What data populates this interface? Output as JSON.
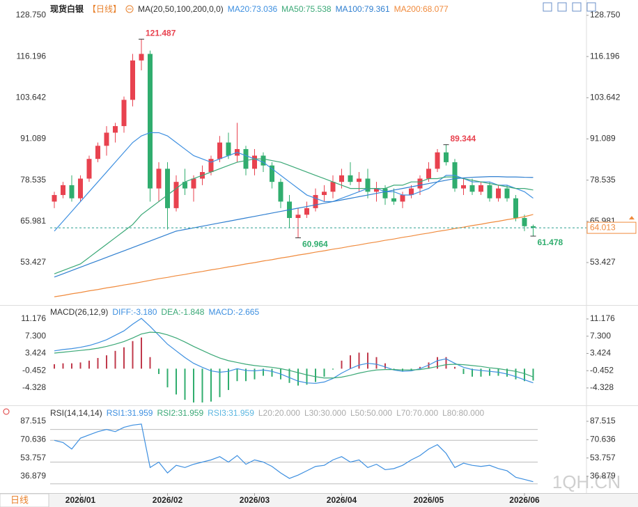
{
  "header": {
    "symbol": "现货白银",
    "period": "【日线】",
    "watermark": "1QH.CN",
    "period_button": "日线"
  },
  "chart_data": [
    {
      "type": "candlestick",
      "title": "MA(20,50,100,200,0,0)",
      "categories": [
        null,
        null,
        null,
        "2026/01",
        null,
        null,
        null,
        null,
        null,
        null,
        null,
        null,
        null,
        "2026/02",
        null,
        null,
        null,
        null,
        null,
        null,
        null,
        null,
        null,
        "2026/03",
        null,
        null,
        null,
        null,
        null,
        null,
        null,
        null,
        null,
        "2026/04",
        null,
        null,
        null,
        null,
        null,
        null,
        null,
        null,
        null,
        "2026/05",
        null,
        null,
        null,
        null,
        null,
        null,
        null,
        null,
        null,
        null,
        "2026/06",
        null
      ],
      "ohlc": {
        "open": [
          72,
          74,
          77,
          73,
          79,
          85,
          89,
          93,
          95,
          103,
          115,
          117,
          76,
          82,
          70,
          78,
          76,
          79,
          81,
          85,
          90,
          86,
          88,
          82,
          86,
          83,
          78,
          72,
          67,
          68,
          70,
          74,
          75,
          78,
          80,
          78,
          79,
          75,
          76,
          73,
          72,
          74,
          76,
          79,
          82,
          87,
          84,
          76,
          77,
          75,
          77,
          73,
          76,
          73,
          67,
          64.5
        ],
        "high": [
          75,
          78,
          80,
          80,
          86,
          90,
          95,
          96,
          104,
          117,
          121.487,
          118,
          84,
          84,
          80,
          82,
          80,
          83,
          86,
          92,
          93,
          96,
          89,
          88,
          87,
          84,
          79,
          74,
          70,
          72,
          76,
          77,
          80,
          82,
          84,
          81,
          82,
          78,
          77,
          76,
          75,
          77,
          80,
          84,
          88,
          89.344,
          85,
          79,
          79,
          78,
          78,
          77,
          77,
          74,
          68,
          65
        ],
        "low": [
          70,
          73,
          72,
          72,
          78,
          84,
          86,
          90,
          93,
          101,
          112,
          72,
          72,
          63.5,
          69,
          74,
          72,
          77,
          80,
          84,
          85,
          84,
          80,
          80,
          81,
          76,
          70,
          64,
          60.964,
          67,
          69,
          72,
          73,
          76,
          77,
          75,
          73,
          72,
          71,
          71,
          70,
          73,
          74,
          78,
          81,
          83,
          75,
          74,
          74,
          74,
          72,
          72,
          72,
          66,
          63,
          61.478
        ],
        "close": [
          74,
          77,
          73,
          79,
          85,
          89,
          93,
          95,
          103,
          115,
          117,
          76,
          82,
          70,
          78,
          76,
          79,
          81,
          85,
          90,
          86,
          88,
          82,
          86,
          83,
          78,
          72,
          67,
          68,
          70,
          74,
          75,
          78,
          80,
          78,
          79,
          75,
          76,
          73,
          72,
          74,
          76,
          79,
          82,
          87,
          84,
          76,
          77,
          75,
          77,
          73,
          76,
          73,
          67,
          64.5,
          64.013
        ]
      },
      "up_color": "#e8424f",
      "down_color": "#30ad6e",
      "price_line_color": "#2a9d8f",
      "price_tag_color": "#f08a3c",
      "lines": [
        {
          "name": "MA20:73.036",
          "color": "#3d8fe0",
          "values": [
            63,
            66,
            69,
            72,
            75,
            78,
            81,
            84,
            87,
            90,
            92,
            93,
            93,
            92,
            90,
            88,
            86,
            85,
            84,
            85,
            86,
            87,
            86,
            85,
            84,
            82,
            80,
            78,
            76,
            74,
            73,
            72,
            72,
            73,
            74,
            75,
            76,
            76,
            75,
            75,
            74,
            74,
            75,
            76,
            78,
            80,
            80,
            79,
            78,
            78,
            78,
            77,
            77,
            76,
            75,
            73.036
          ]
        },
        {
          "name": "MA50:75.538",
          "color": "#3aa876",
          "values": [
            50,
            51,
            52,
            53,
            55,
            57,
            59,
            61,
            63,
            65,
            68,
            70,
            72,
            74,
            76,
            78,
            79,
            80,
            81,
            82,
            83,
            84,
            84.5,
            85,
            85,
            84.5,
            84,
            83,
            82,
            81,
            80,
            79,
            78,
            77,
            76,
            76,
            76,
            76,
            76,
            77,
            77,
            78,
            78,
            79,
            79,
            79.5,
            79.5,
            79,
            78.5,
            78,
            77.5,
            77,
            76.5,
            76,
            76,
            75.538
          ]
        },
        {
          "name": "MA100:79.361",
          "color": "#2f7fd0",
          "values": [
            49,
            50,
            51,
            52,
            53,
            54,
            55,
            56,
            57,
            58,
            59,
            60,
            61,
            62,
            63,
            63.5,
            64,
            64.5,
            65,
            65.5,
            66,
            66.5,
            67,
            67.5,
            68,
            68.5,
            69,
            69.5,
            70,
            70.5,
            71,
            71.5,
            72,
            72.5,
            73,
            73.5,
            74,
            74.5,
            75,
            75.5,
            76,
            76.5,
            77,
            77.5,
            78,
            78.5,
            79,
            79.2,
            79.4,
            79.5,
            79.6,
            79.6,
            79.5,
            79.5,
            79.4,
            79.361
          ]
        },
        {
          "name": "MA200:68.077",
          "color": "#f08a3c",
          "values": [
            43.0,
            43.4,
            43.9,
            44.3,
            44.8,
            45.2,
            45.7,
            46.1,
            46.6,
            47.0,
            47.5,
            48.0,
            48.5,
            48.9,
            49.4,
            49.8,
            50.3,
            50.7,
            51.2,
            51.6,
            52.1,
            52.5,
            53.0,
            53.4,
            53.9,
            54.3,
            54.8,
            55.2,
            55.7,
            56.1,
            56.6,
            57.0,
            57.5,
            57.9,
            58.4,
            58.8,
            59.3,
            59.7,
            60.2,
            60.6,
            61.1,
            61.5,
            62.0,
            62.4,
            62.9,
            63.3,
            63.8,
            64.2,
            64.7,
            65.1,
            65.6,
            66.0,
            66.5,
            66.9,
            67.4,
            68.077
          ]
        }
      ],
      "annotations": [
        {
          "text": "121.487",
          "field": "high",
          "color": "#e8424f"
        },
        {
          "text": "60.964",
          "field": "low",
          "color": "#30ad6e"
        },
        {
          "text": "89.344",
          "field": "high",
          "color": "#e8424f"
        },
        {
          "text": "61.478",
          "field": "low",
          "color": "#30ad6e"
        }
      ],
      "ylim": [
        40.48,
        131.3
      ],
      "yticks": [
        {
          "value": 128.75,
          "label": "128.750"
        },
        116.196,
        103.642,
        91.089,
        78.535,
        65.981,
        53.427
      ]
    },
    {
      "type": "macd",
      "title": "MACD(26,12,9)",
      "series": [
        {
          "name": "DIFF:-3.180",
          "color": "#3d8fe0",
          "values": [
            4,
            4.3,
            4.5,
            4.8,
            5.2,
            5.8,
            6.5,
            7.5,
            8.5,
            10,
            11.3,
            9.5,
            7.5,
            5.5,
            4,
            2.5,
            1.2,
            0.3,
            -0.5,
            -0.8,
            -0.6,
            0,
            -0.4,
            -0.5,
            -0.3,
            -0.6,
            -1.2,
            -2,
            -2.8,
            -3.2,
            -3.3,
            -3,
            -2.2,
            -1,
            0,
            0.8,
            1.2,
            1,
            0.4,
            -0.3,
            -0.6,
            -0.5,
            0,
            0.8,
            1.8,
            2.2,
            1.2,
            0.3,
            -0.2,
            -0.4,
            -0.6,
            -0.8,
            -1.2,
            -1.8,
            -2.5,
            -3.18
          ]
        },
        {
          "name": "DEA:-1.848",
          "color": "#3aa876",
          "values": [
            3.5,
            3.7,
            3.9,
            4.1,
            4.3,
            4.6,
            5,
            5.5,
            6.1,
            6.9,
            7.8,
            8.2,
            8.1,
            7.6,
            6.9,
            6,
            5,
            4.1,
            3.2,
            2.4,
            1.8,
            1.4,
            1,
            0.7,
            0.5,
            0.3,
            0,
            -0.4,
            -0.9,
            -1.4,
            -1.8,
            -2.1,
            -2.1,
            -1.9,
            -1.5,
            -1,
            -0.6,
            -0.3,
            -0.2,
            -0.2,
            -0.3,
            -0.3,
            -0.2,
            0.1,
            0.5,
            0.9,
            1,
            0.9,
            0.7,
            0.5,
            0.2,
            0,
            -0.3,
            -0.6,
            -1.1,
            -1.848
          ]
        },
        {
          "name": "MACD:-2.665",
          "type": "bar",
          "color": "#3d8fe0",
          "up_color": "#c0394b",
          "down_color": "#30ad6e",
          "values": [
            1.0,
            1.2,
            1.2,
            1.4,
            1.8,
            2.4,
            3.0,
            4.0,
            4.8,
            6.2,
            7.0,
            2.6,
            -1.2,
            -4.2,
            -5.8,
            -7.0,
            -7.6,
            -7.6,
            -7.4,
            -6.4,
            -4.8,
            -2.8,
            -2.8,
            -2.4,
            -1.6,
            -1.8,
            -2.4,
            -3.2,
            -3.8,
            -3.6,
            -3.0,
            -1.8,
            -0.2,
            1.8,
            3.0,
            3.6,
            3.6,
            2.6,
            1.2,
            -0.2,
            -0.6,
            -0.4,
            0.4,
            1.4,
            2.6,
            2.6,
            0.4,
            -1.2,
            -1.8,
            -1.8,
            -1.6,
            -1.6,
            -1.8,
            -2.4,
            -2.8,
            -2.665
          ]
        }
      ],
      "ylim": [
        -8.24,
        13.99
      ],
      "yticks": [
        11.176,
        {
          "value": 7.3,
          "label": "7.300"
        },
        3.424,
        -0.452,
        -4.328
      ]
    },
    {
      "type": "line",
      "title": "RSI(14,14,14)",
      "series": [
        {
          "name": "RSI1:31.959",
          "color": "#3d8fe0",
          "values": [
            70,
            68,
            62,
            72,
            75,
            78,
            80,
            78,
            82,
            84,
            85,
            45,
            50,
            40,
            47,
            45,
            48,
            50,
            52,
            55,
            50,
            56,
            48,
            52,
            50,
            46,
            40,
            35,
            38,
            42,
            46,
            47,
            52,
            55,
            50,
            52,
            45,
            48,
            43,
            44,
            47,
            52,
            56,
            62,
            66,
            58,
            45,
            49,
            47,
            46,
            47,
            44,
            42,
            36,
            34,
            31.959
          ]
        }
      ],
      "legend_extra": [
        {
          "text": "RSI2:31.959",
          "color": "#3aa876"
        },
        {
          "text": "RSI3:31.959",
          "color": "#5bb6e0"
        },
        {
          "text": "L20:20.000",
          "color": "#aaaaaa"
        },
        {
          "text": "L30:30.000",
          "color": "#aaaaaa"
        },
        {
          "text": "L50:50.000",
          "color": "#aaaaaa"
        },
        {
          "text": "L70:70.000",
          "color": "#aaaaaa"
        },
        {
          "text": "L80:80.000",
          "color": "#aaaaaa"
        }
      ],
      "reference_lines": [
        80,
        70,
        50,
        30,
        20
      ],
      "ylim": [
        23.4,
        100.3
      ],
      "yticks": [
        87.515,
        70.636,
        53.757,
        36.879
      ]
    }
  ]
}
